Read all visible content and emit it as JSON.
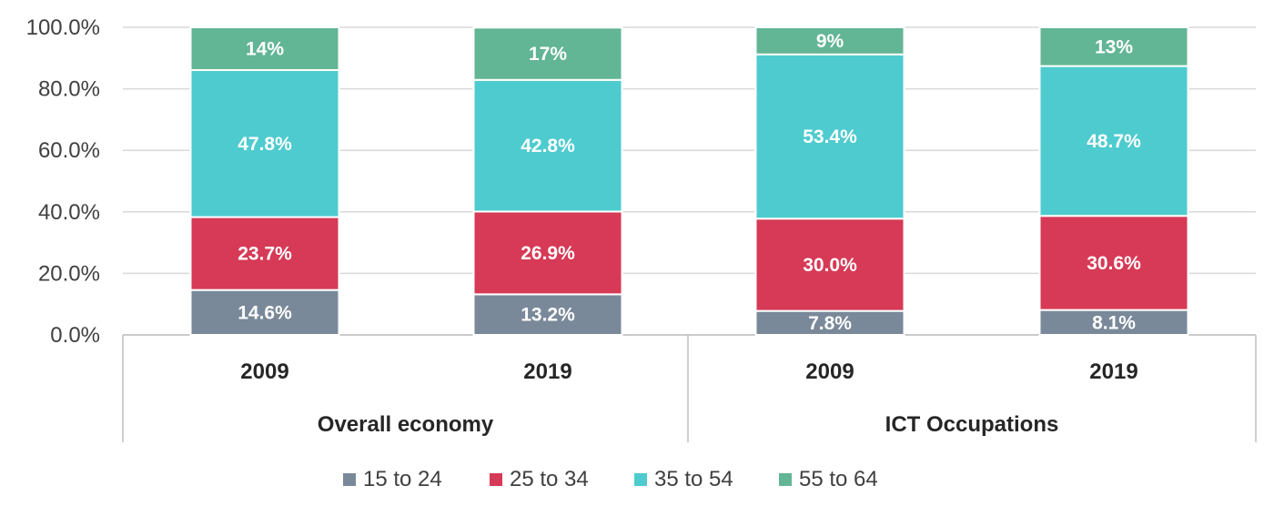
{
  "chart_data": {
    "type": "bar",
    "stacked": true,
    "title": "",
    "xlabel": "",
    "ylabel": "",
    "ylim": [
      0,
      100
    ],
    "y_ticks": [
      "0.0%",
      "20.0%",
      "40.0%",
      "60.0%",
      "80.0%",
      "100.0%"
    ],
    "groups": [
      {
        "name": "Overall economy",
        "categories": [
          "2009",
          "2019"
        ]
      },
      {
        "name": "ICT Occupations",
        "categories": [
          "2009",
          "2019"
        ]
      }
    ],
    "categories": [
      "2009",
      "2019",
      "2009",
      "2019"
    ],
    "series": [
      {
        "name": "15 to 24",
        "color": "#7a8999",
        "values": [
          14.6,
          13.2,
          7.8,
          8.1
        ],
        "labels": [
          "14.6%",
          "13.2%",
          "7.8%",
          "8.1%"
        ]
      },
      {
        "name": "25 to 34",
        "color": "#d63a56",
        "values": [
          23.7,
          26.9,
          30.0,
          30.6
        ],
        "labels": [
          "23.7%",
          "26.9%",
          "30.0%",
          "30.6%"
        ]
      },
      {
        "name": "35 to 54",
        "color": "#4ecbcf",
        "values": [
          47.8,
          42.8,
          53.4,
          48.7
        ],
        "labels": [
          "47.8%",
          "42.8%",
          "53.4%",
          "48.7%"
        ]
      },
      {
        "name": "55 to 64",
        "color": "#62b595",
        "values": [
          14,
          17,
          9,
          13
        ],
        "labels": [
          "14%",
          "17%",
          "9%",
          "13%"
        ]
      }
    ],
    "legend": {
      "position": "bottom"
    },
    "grid": true
  }
}
